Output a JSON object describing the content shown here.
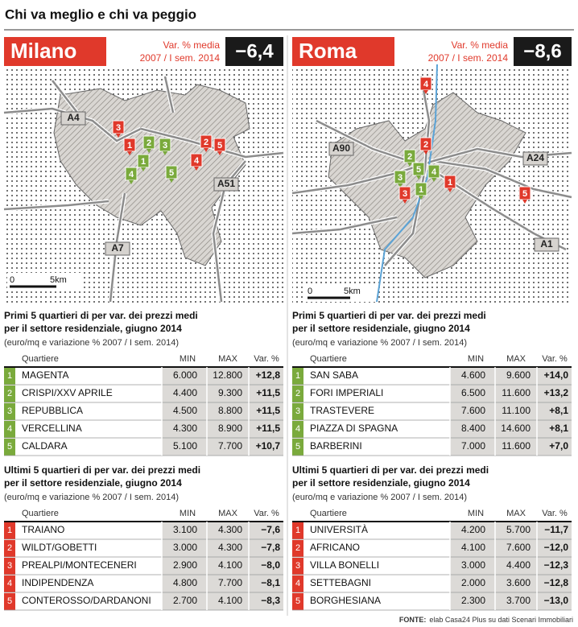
{
  "title": "Chi va meglio e chi va peggio",
  "panels": [
    {
      "city": "Milano",
      "var_label": "Var. % media",
      "period": "2007 / I sem. 2014",
      "var_value": "−6,4",
      "map": {
        "roads": [
          "A4",
          "A51",
          "A7"
        ],
        "scale": [
          "0",
          "5km"
        ],
        "top_markers": [
          "1",
          "2",
          "3",
          "4",
          "5"
        ],
        "bottom_markers": [
          "1",
          "2",
          "3",
          "4",
          "5"
        ]
      },
      "tables": [
        {
          "title": [
            "Primi 5 quartieri di per var. dei prezzi medi",
            "per il settore residenziale, giugno 2014"
          ],
          "note": "(euro/mq e variazione % 2007 / I sem. 2014)",
          "columns": [
            "Quartiere",
            "MIN",
            "MAX",
            "Var. %"
          ],
          "rows": [
            [
              "1",
              "MAGENTA",
              "6.000",
              "12.800",
              "+12,8"
            ],
            [
              "2",
              "CRISPI/XXV APRILE",
              "4.400",
              "9.300",
              "+11,5"
            ],
            [
              "3",
              "REPUBBLICA",
              "4.500",
              "8.800",
              "+11,5"
            ],
            [
              "4",
              "VERCELLINA",
              "4.300",
              "8.900",
              "+11,5"
            ],
            [
              "5",
              "CALDARA",
              "5.100",
              "7.700",
              "+10,7"
            ]
          ]
        },
        {
          "title": [
            "Ultimi 5 quartieri di per var. dei prezzi medi",
            "per il settore residenziale, giugno 2014"
          ],
          "note": "(euro/mq e variazione % 2007 / I sem. 2014)",
          "columns": [
            "Quartiere",
            "MIN",
            "MAX",
            "Var. %"
          ],
          "rows": [
            [
              "1",
              "TRAIANO",
              "3.100",
              "4.300",
              "−7,6"
            ],
            [
              "2",
              "WILDT/GOBETTI",
              "3.000",
              "4.300",
              "−7,8"
            ],
            [
              "3",
              "PREALPI/MONTECENERI",
              "2.900",
              "4.100",
              "−8,0"
            ],
            [
              "4",
              "INDIPENDENZA",
              "4.800",
              "7.700",
              "−8,1"
            ],
            [
              "5",
              "CONTEROSSO/DARDANONI",
              "2.700",
              "4.100",
              "−8,3"
            ]
          ]
        }
      ]
    },
    {
      "city": "Roma",
      "var_label": "Var. % media",
      "period": "2007 / I sem. 2014",
      "var_value": "−8,6",
      "map": {
        "roads": [
          "A90",
          "A24",
          "A1"
        ],
        "scale": [
          "0",
          "5km"
        ],
        "top_markers": [
          "1",
          "2",
          "3",
          "4",
          "5"
        ],
        "bottom_markers": [
          "1",
          "2",
          "3",
          "4",
          "5"
        ]
      },
      "tables": [
        {
          "title": [
            "Primi 5 quartieri di per var. dei prezzi medi",
            "per il settore residenziale, giugno 2014"
          ],
          "note": "(euro/mq e variazione % 2007 / I sem. 2014)",
          "columns": [
            "Quartiere",
            "MIN",
            "MAX",
            "Var. %"
          ],
          "rows": [
            [
              "1",
              "SAN SABA",
              "4.600",
              "9.600",
              "+14,0"
            ],
            [
              "2",
              "FORI IMPERIALI",
              "6.500",
              "11.600",
              "+13,2"
            ],
            [
              "3",
              "TRASTEVERE",
              "7.600",
              "11.100",
              "+8,1"
            ],
            [
              "4",
              "PIAZZA DI SPAGNA",
              "8.400",
              "14.600",
              "+8,1"
            ],
            [
              "5",
              "BARBERINI",
              "7.000",
              "11.600",
              "+7,0"
            ]
          ]
        },
        {
          "title": [
            "Ultimi 5 quartieri di per var. dei prezzi medi",
            "per il settore residenziale, giugno 2014"
          ],
          "note": "(euro/mq e variazione % 2007 / I sem. 2014)",
          "columns": [
            "Quartiere",
            "MIN",
            "MAX",
            "Var. %"
          ],
          "rows": [
            [
              "1",
              "UNIVERSITÀ",
              "4.200",
              "5.700",
              "−11,7"
            ],
            [
              "2",
              "AFRICANO",
              "4.100",
              "7.600",
              "−12,0"
            ],
            [
              "3",
              "VILLA BONELLI",
              "3.000",
              "4.400",
              "−12,3"
            ],
            [
              "4",
              "SETTEBAGNI",
              "2.000",
              "3.600",
              "−12,8"
            ],
            [
              "5",
              "BORGHESIANA",
              "2.300",
              "3.700",
              "−13,0"
            ]
          ]
        }
      ]
    }
  ],
  "source_label": "FONTE:",
  "source": "elab Casa24 Plus su dati Scenari Immobiliari"
}
